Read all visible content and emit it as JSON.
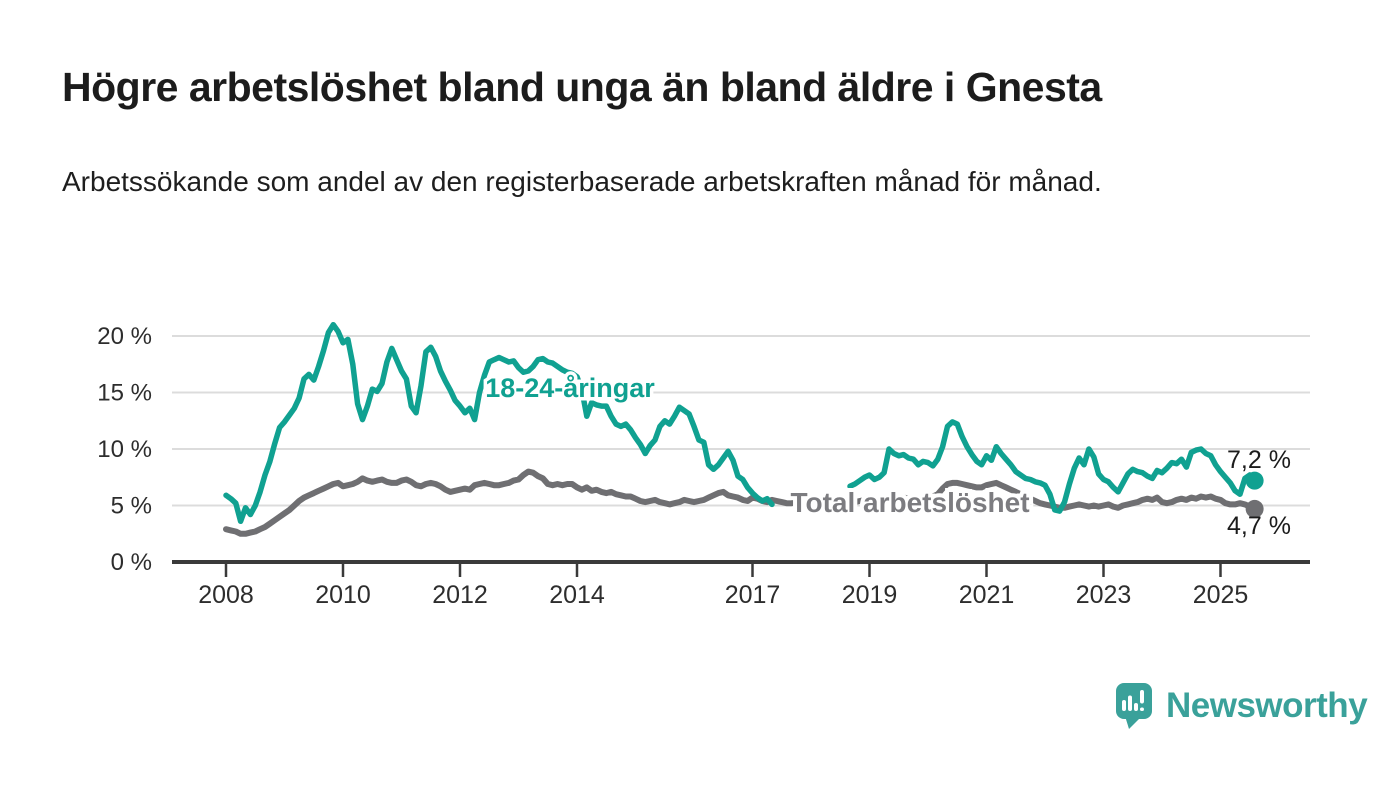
{
  "header": {
    "title": "Högre arbetslöshet bland unga än bland äldre i Gnesta",
    "subtitle": "Arbetssökande som andel av den registerbaserade arbetskraften månad för månad."
  },
  "footer": {
    "brand": "Newsworthy"
  },
  "colors": {
    "youth": "#10a191",
    "total": "#6f6f72",
    "total_label": "#7c7c80",
    "brand_teal": "#3aa19a",
    "grid": "#dcdcdc",
    "axis": "#3a3a3a",
    "text": "#1c1c1c"
  },
  "chart_data": {
    "type": "line",
    "title": "Högre arbetslöshet bland unga än bland äldre i Gnesta",
    "subtitle": "Arbetssökande som andel av den registerbaserade arbetskraften månad för månad.",
    "x_start_year": 2008,
    "x_start_month": 1,
    "x_frequency": "monthly",
    "x_tick_years": [
      2008,
      2010,
      2012,
      2014,
      2017,
      2019,
      2021,
      2023,
      2025
    ],
    "y_ticks": [
      0,
      5,
      10,
      15,
      20
    ],
    "y_tick_suffix": " %",
    "ylim": [
      0,
      22
    ],
    "grid": true,
    "legend_position": "inline-labels",
    "note_gap": "both youth series has missing data mid-2017 to mid-2018",
    "series": [
      {
        "name": "Total arbetslöshet",
        "color_key": "total",
        "end_label": "4,7 %",
        "end_value": 4.7,
        "values": [
          2.9,
          2.8,
          2.7,
          2.5,
          2.5,
          2.6,
          2.7,
          2.9,
          3.1,
          3.4,
          3.7,
          4.0,
          4.3,
          4.6,
          5.0,
          5.4,
          5.7,
          5.9,
          6.1,
          6.3,
          6.5,
          6.7,
          6.9,
          7.0,
          6.7,
          6.8,
          6.9,
          7.1,
          7.4,
          7.2,
          7.1,
          7.2,
          7.3,
          7.1,
          7.0,
          7.0,
          7.2,
          7.3,
          7.1,
          6.8,
          6.7,
          6.9,
          7.0,
          6.9,
          6.7,
          6.4,
          6.2,
          6.3,
          6.4,
          6.5,
          6.4,
          6.8,
          6.9,
          7.0,
          6.9,
          6.8,
          6.8,
          6.9,
          7.0,
          7.2,
          7.3,
          7.7,
          8.0,
          7.9,
          7.6,
          7.4,
          6.9,
          6.8,
          6.9,
          6.8,
          6.9,
          6.9,
          6.6,
          6.4,
          6.6,
          6.3,
          6.4,
          6.2,
          6.1,
          6.2,
          6.0,
          5.9,
          5.8,
          5.8,
          5.6,
          5.4,
          5.3,
          5.4,
          5.5,
          5.3,
          5.2,
          5.1,
          5.2,
          5.3,
          5.5,
          5.4,
          5.3,
          5.4,
          5.5,
          5.7,
          5.9,
          6.1,
          6.2,
          5.9,
          5.8,
          5.7,
          5.5,
          5.4,
          5.7,
          5.6,
          5.4,
          5.3,
          5.5,
          5.4,
          5.3,
          5.2,
          5.2,
          5.3,
          5.4,
          5.5,
          5.5,
          5.4,
          5.3,
          5.2,
          5.1,
          5.0,
          5.0,
          5.1,
          5.2,
          5.3,
          5.4,
          5.5,
          5.5,
          5.4,
          5.4,
          5.5,
          5.6,
          5.7,
          5.8,
          5.7,
          5.6,
          5.6,
          5.7,
          5.8,
          5.9,
          5.8,
          6.0,
          6.5,
          6.9,
          7.0,
          7.0,
          6.9,
          6.8,
          6.7,
          6.6,
          6.6,
          6.8,
          6.9,
          7.0,
          6.8,
          6.6,
          6.4,
          6.2,
          6.0,
          5.8,
          5.6,
          5.4,
          5.2,
          5.1,
          5.0,
          4.9,
          4.8,
          4.8,
          4.9,
          5.0,
          5.1,
          5.0,
          4.9,
          5.0,
          4.9,
          5.0,
          5.1,
          4.9,
          4.8,
          5.0,
          5.1,
          5.2,
          5.3,
          5.5,
          5.6,
          5.5,
          5.7,
          5.3,
          5.2,
          5.3,
          5.5,
          5.6,
          5.5,
          5.7,
          5.6,
          5.8,
          5.7,
          5.8,
          5.6,
          5.5,
          5.2,
          5.1,
          5.1,
          5.2,
          5.1,
          4.9,
          4.7
        ]
      },
      {
        "name": "18-24-åringar",
        "color_key": "youth",
        "end_label": "7,2 %",
        "end_value": 7.2,
        "values": [
          5.9,
          5.6,
          5.2,
          3.6,
          4.8,
          4.2,
          5.0,
          6.2,
          7.7,
          8.9,
          10.5,
          11.9,
          12.4,
          13.0,
          13.6,
          14.5,
          16.2,
          16.6,
          16.1,
          17.3,
          18.7,
          20.3,
          21.0,
          20.4,
          19.4,
          19.7,
          17.5,
          14.0,
          12.6,
          13.8,
          15.3,
          15.1,
          15.8,
          17.7,
          18.9,
          17.9,
          16.9,
          16.2,
          13.8,
          13.2,
          15.6,
          18.6,
          19.0,
          18.2,
          16.9,
          16.0,
          15.2,
          14.3,
          13.8,
          13.2,
          13.6,
          12.6,
          15.0,
          16.5,
          17.7,
          17.9,
          18.1,
          17.9,
          17.7,
          17.8,
          17.2,
          16.8,
          16.9,
          17.3,
          17.9,
          18.0,
          17.7,
          17.6,
          17.3,
          17.0,
          16.8,
          16.7,
          16.4,
          15.2,
          12.9,
          14.1,
          13.9,
          13.8,
          13.8,
          12.9,
          12.2,
          12.0,
          12.2,
          11.7,
          11.0,
          10.4,
          9.6,
          10.3,
          10.8,
          12.0,
          12.5,
          12.2,
          12.9,
          13.7,
          13.4,
          13.1,
          12.0,
          10.8,
          10.6,
          8.6,
          8.2,
          8.6,
          9.2,
          9.8,
          9.0,
          7.6,
          7.3,
          6.6,
          6.1,
          5.7,
          5.4,
          5.6,
          5.1,
          null,
          null,
          null,
          null,
          null,
          null,
          null,
          null,
          null,
          null,
          null,
          null,
          null,
          null,
          null,
          6.7,
          6.9,
          7.2,
          7.5,
          7.7,
          7.3,
          7.5,
          7.9,
          10.0,
          9.6,
          9.4,
          9.5,
          9.2,
          9.1,
          8.6,
          8.9,
          8.8,
          8.5,
          9.1,
          10.2,
          12.0,
          12.4,
          12.2,
          11.1,
          10.2,
          9.5,
          8.9,
          8.6,
          9.4,
          9.0,
          10.2,
          9.6,
          9.1,
          8.6,
          8.0,
          7.7,
          7.4,
          7.3,
          7.1,
          7.0,
          6.8,
          6.0,
          4.6,
          4.5,
          5.3,
          6.9,
          8.3,
          9.2,
          8.6,
          10.0,
          9.3,
          7.8,
          7.3,
          7.1,
          6.6,
          6.2,
          7.0,
          7.8,
          8.2,
          8.0,
          7.9,
          7.6,
          7.4,
          8.1,
          7.9,
          8.3,
          8.8,
          8.7,
          9.1,
          8.4,
          9.7,
          9.9,
          10.0,
          9.6,
          9.4,
          8.6,
          8.0,
          7.5,
          7.0,
          6.3,
          6.0,
          7.4,
          7.7,
          7.2
        ]
      }
    ]
  }
}
